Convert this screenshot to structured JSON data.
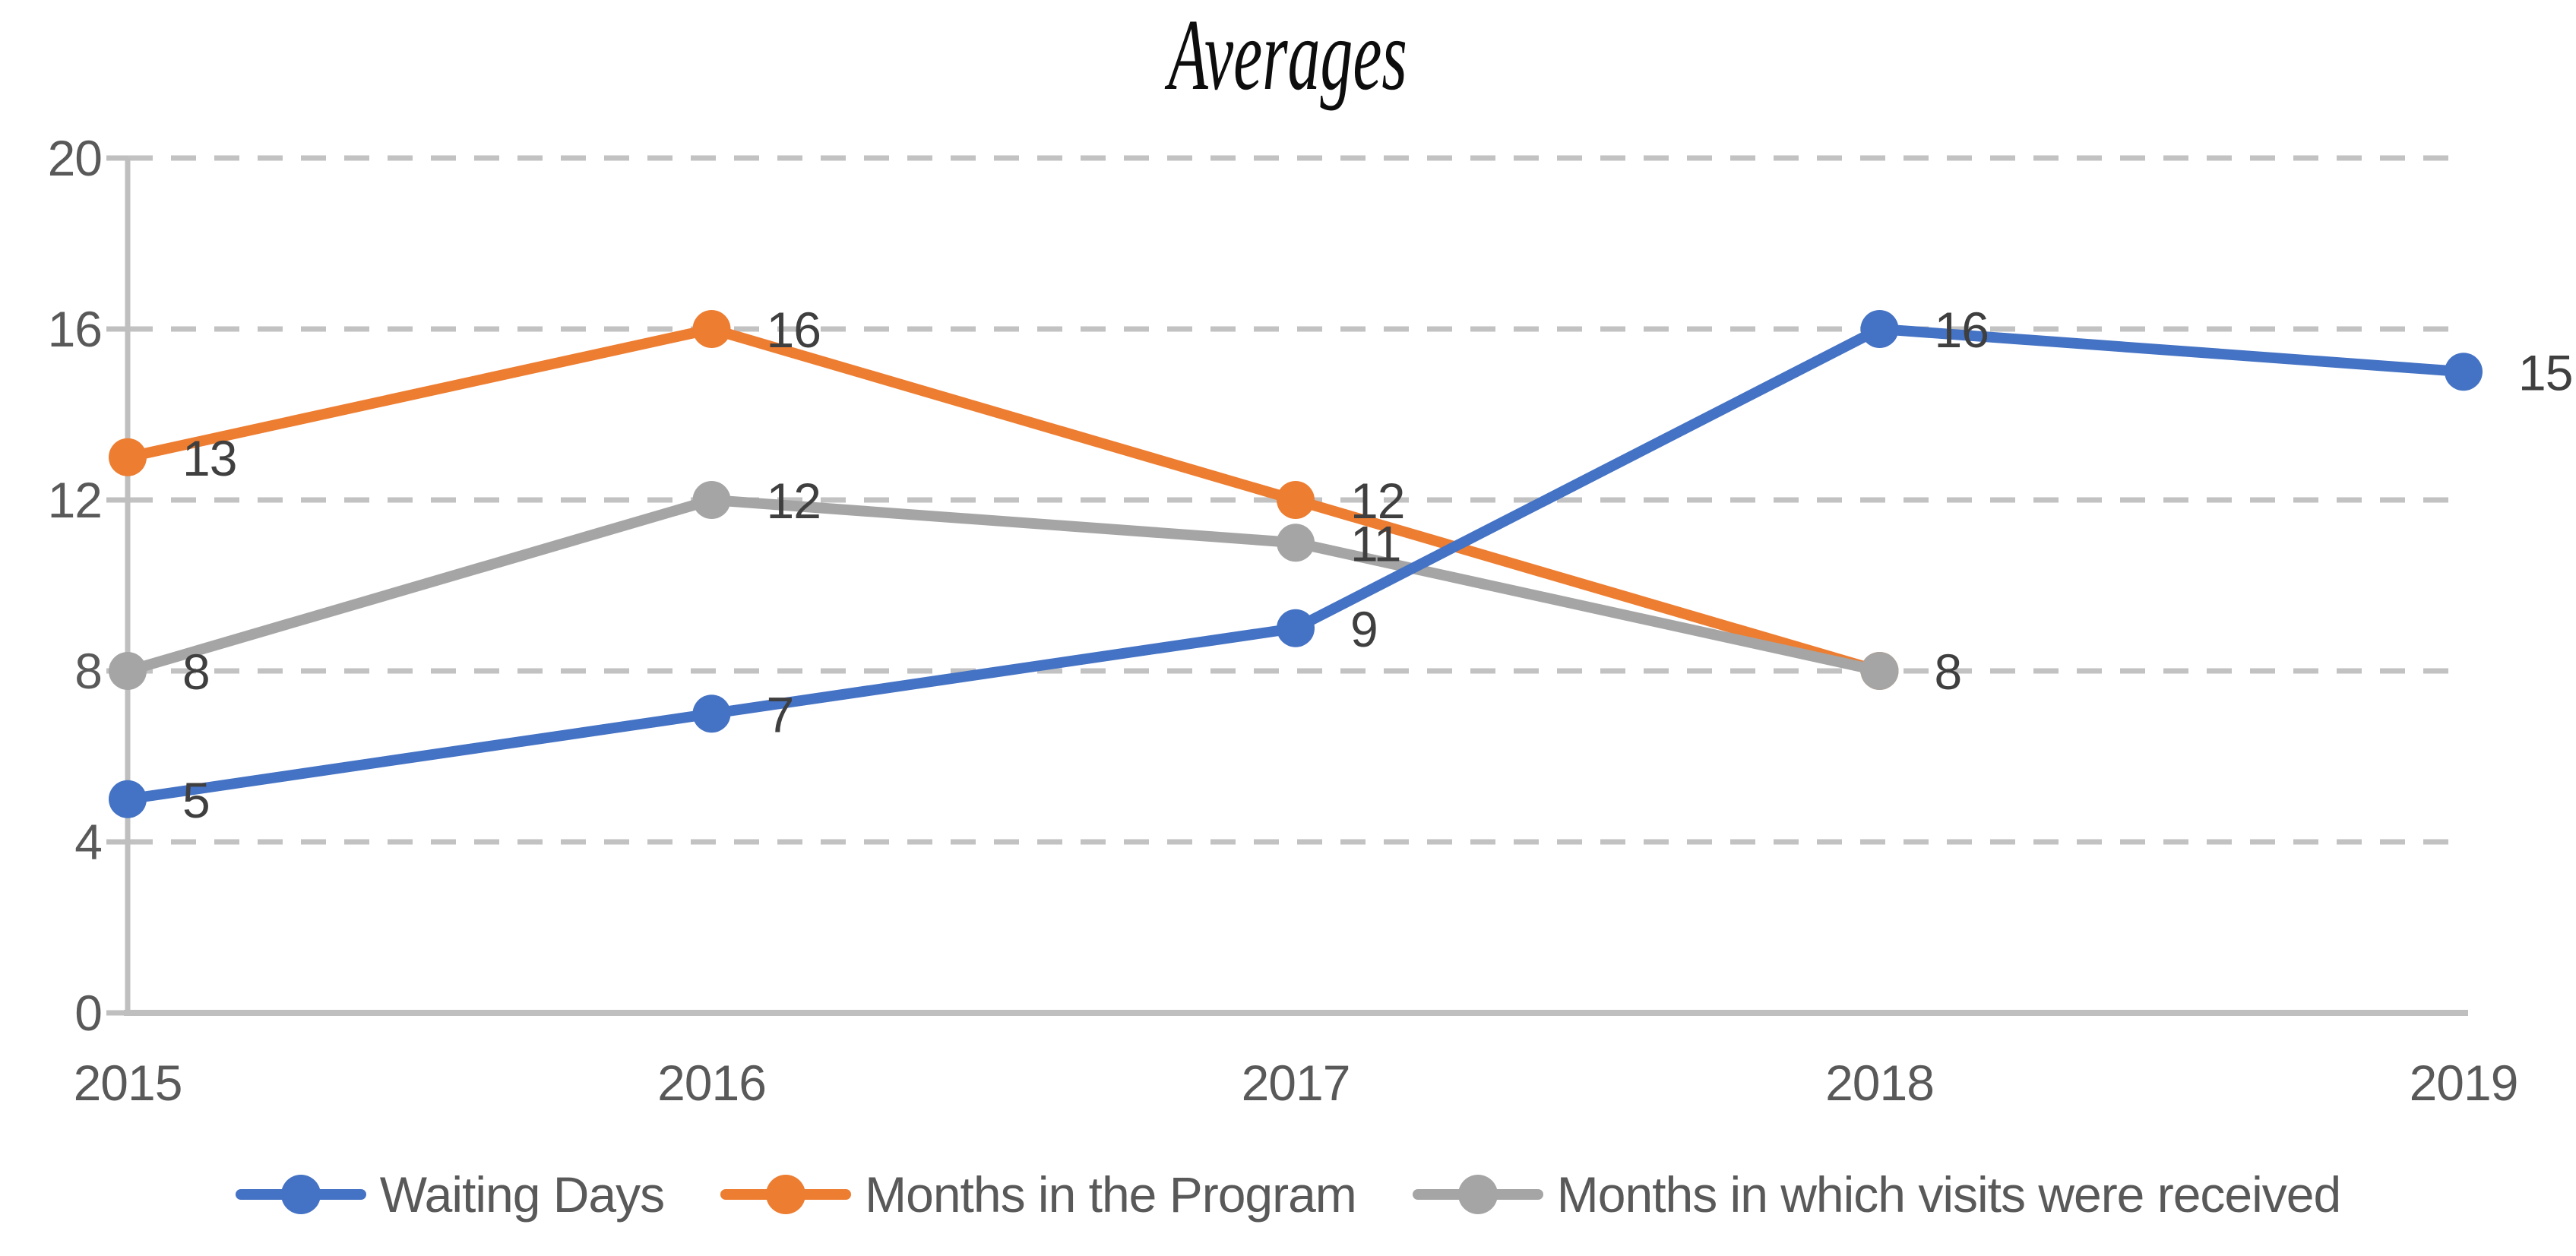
{
  "chart_data": {
    "type": "line",
    "title": "Averages",
    "categories": [
      "2015",
      "2016",
      "2017",
      "2018",
      "2019"
    ],
    "xlabel": "",
    "ylabel": "",
    "y_axis": {
      "min": 0,
      "max": 20,
      "tick_interval": 4,
      "ticks": [
        "0",
        "4",
        "8",
        "12",
        "16",
        "20"
      ]
    },
    "grid": "horizontal-dashed",
    "legend_position": "bottom",
    "series": [
      {
        "name": "Waiting Days",
        "color": "#4472C4",
        "values": [
          5,
          7,
          9,
          16,
          15
        ],
        "data_labels": [
          "5",
          "7",
          "9",
          "16",
          "15"
        ]
      },
      {
        "name": "Months in the Program",
        "color": "#ED7D31",
        "values": [
          13,
          16,
          12,
          8
        ],
        "data_labels": [
          "13",
          "16",
          "12",
          null
        ]
      },
      {
        "name": "Months in which visits were received",
        "color": "#A5A5A5",
        "values": [
          8,
          12,
          11,
          8
        ],
        "data_labels": [
          "8",
          "12",
          "11",
          "8"
        ]
      }
    ]
  }
}
